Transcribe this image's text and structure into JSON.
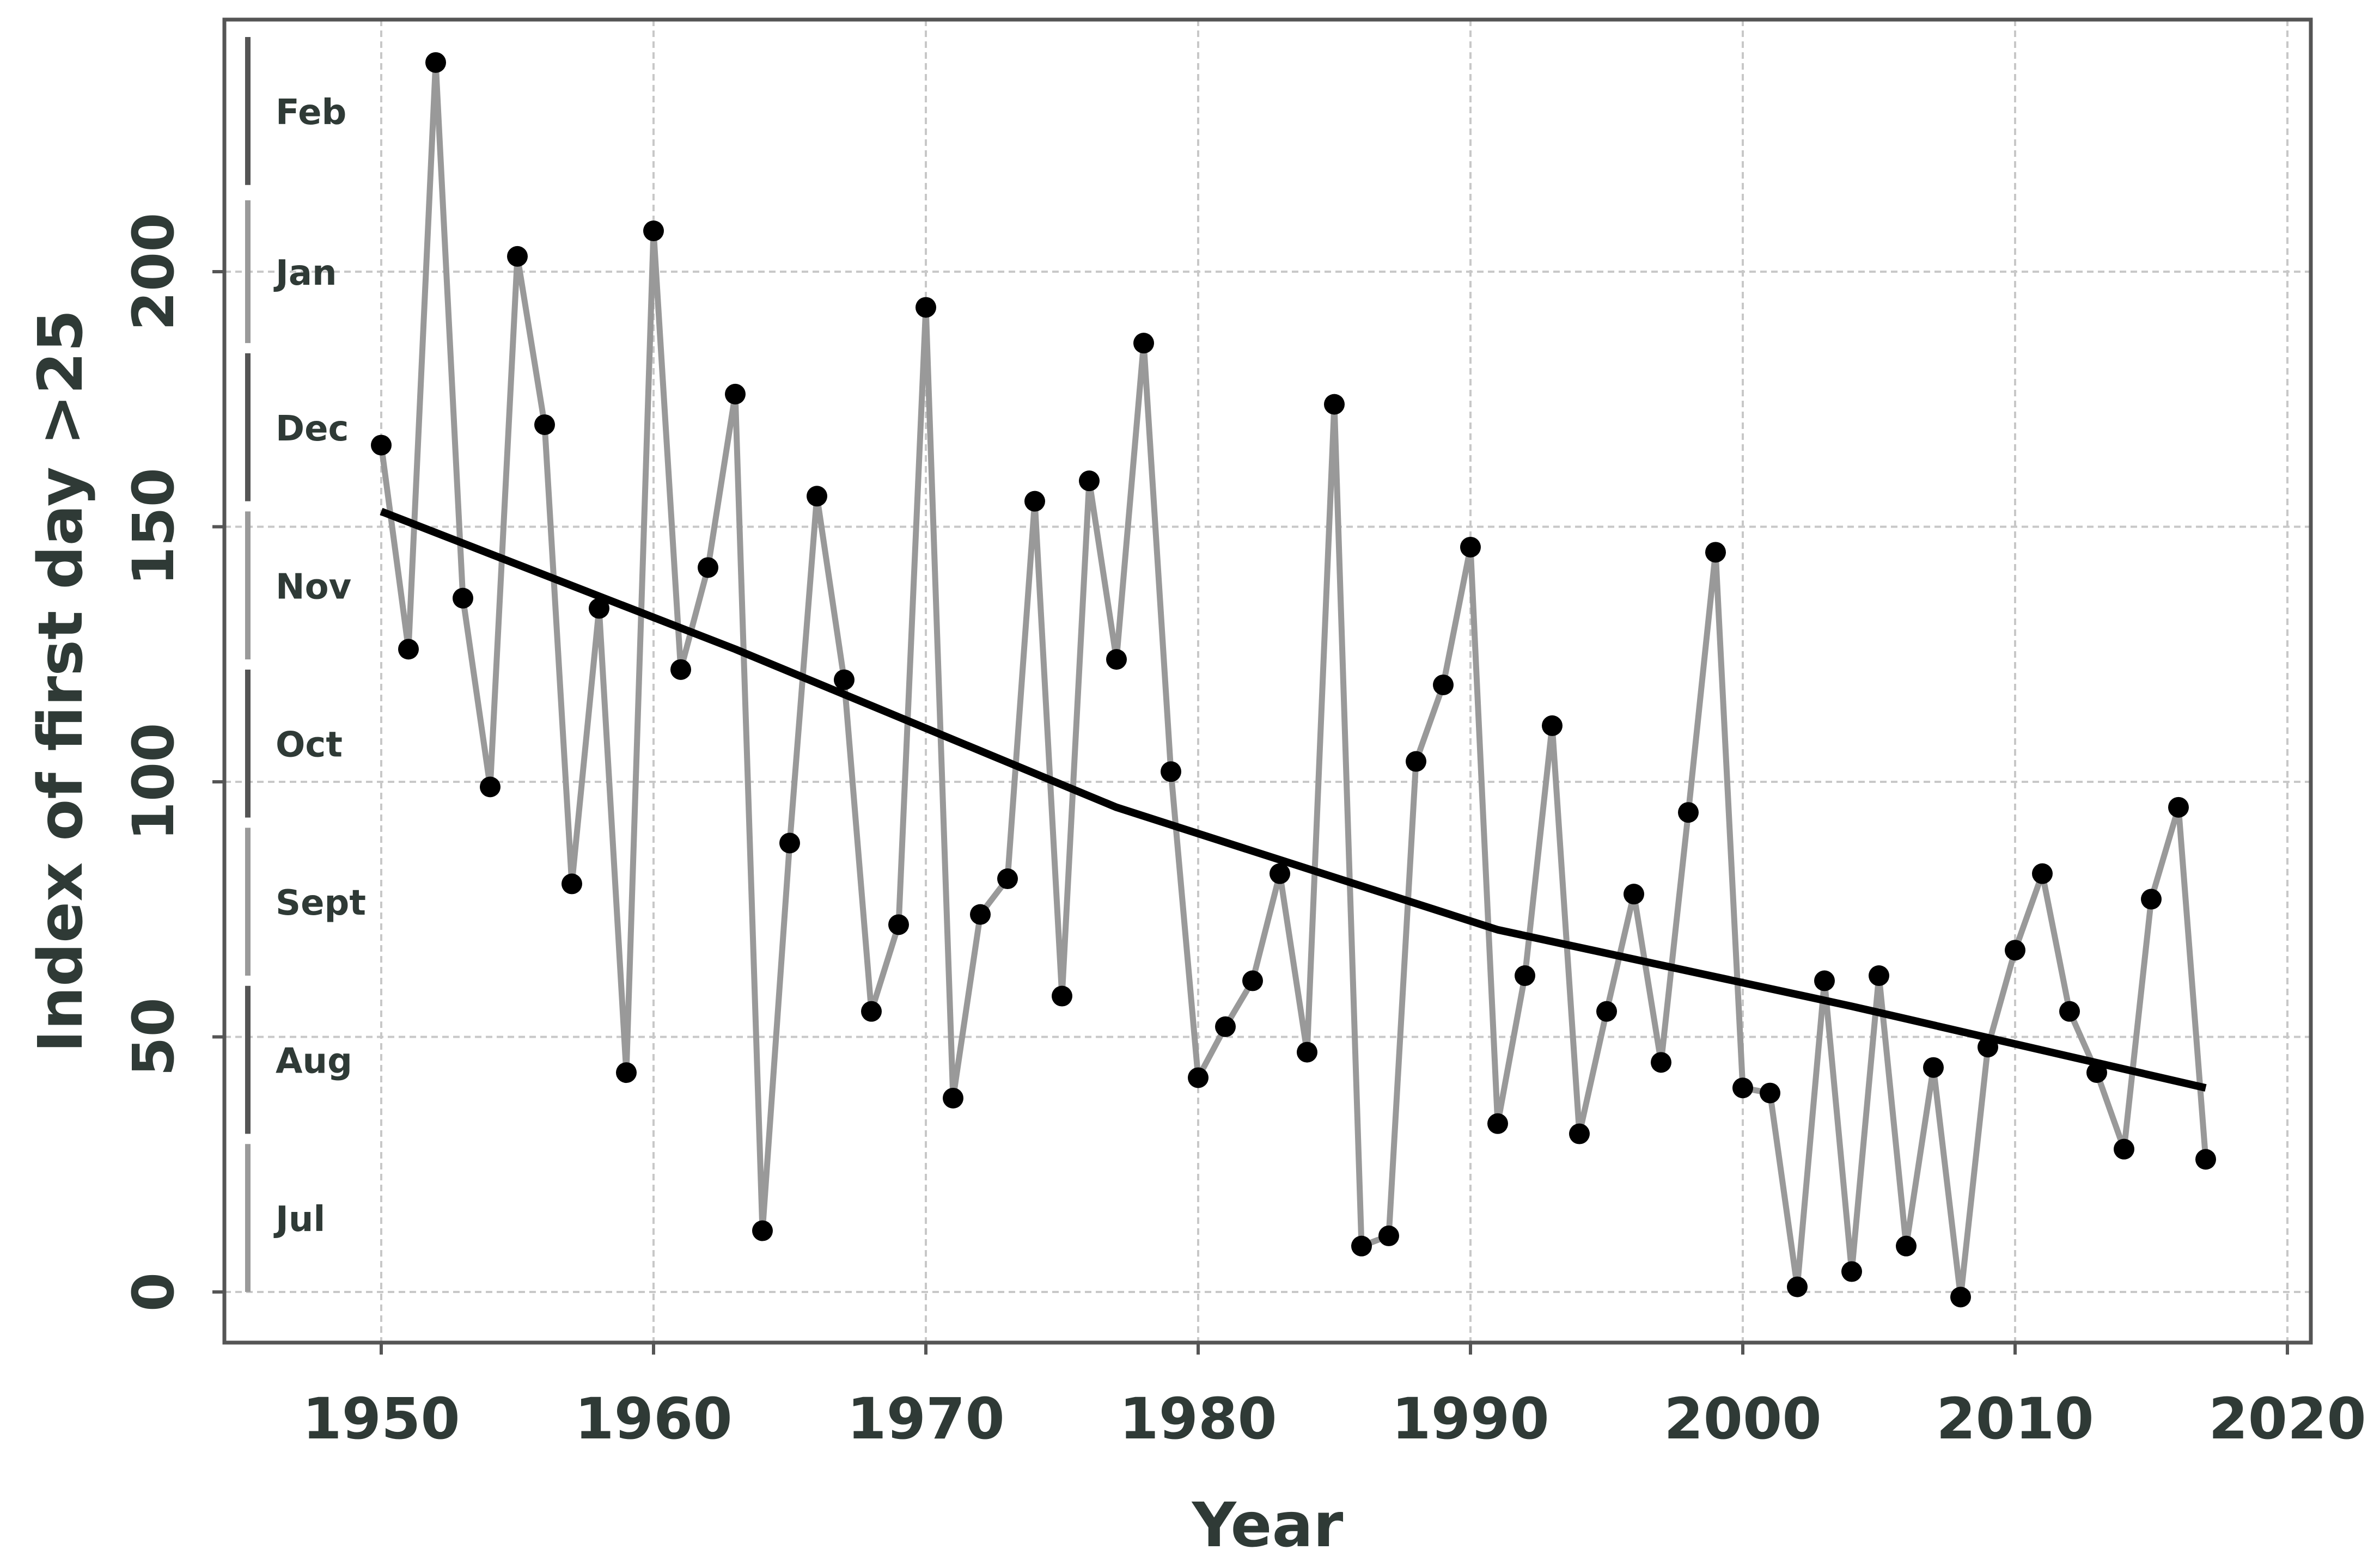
{
  "chart_data": {
    "type": "line",
    "xlabel": "Year",
    "ylabel": "Index of first day >25",
    "xlim": [
      1944,
      2021
    ],
    "ylim": [
      -10,
      250
    ],
    "xticks": [
      1950,
      1960,
      1970,
      1980,
      1990,
      2000,
      2010,
      2020
    ],
    "yticks": [
      0,
      50,
      100,
      150,
      200
    ],
    "grid": true,
    "colors": {
      "observed": "#999999",
      "points": "#000000",
      "trend": "#000000",
      "frame": "#555555",
      "grid": "#c8c8c8",
      "text": "#2f3a36"
    },
    "month_bands": [
      {
        "label": "Jul",
        "from": 0,
        "to": 29,
        "shade": "#9a9a9a"
      },
      {
        "label": "Aug",
        "from": 31,
        "to": 60,
        "shade": "#555555"
      },
      {
        "label": "Sept",
        "from": 62,
        "to": 91,
        "shade": "#9a9a9a"
      },
      {
        "label": "Oct",
        "from": 93,
        "to": 122,
        "shade": "#555555"
      },
      {
        "label": "Nov",
        "from": 124,
        "to": 153,
        "shade": "#9a9a9a"
      },
      {
        "label": "Dec",
        "from": 155,
        "to": 184,
        "shade": "#555555"
      },
      {
        "label": "Jan",
        "from": 186,
        "to": 214,
        "shade": "#9a9a9a"
      },
      {
        "label": "Feb",
        "from": 217,
        "to": 246,
        "shade": "#555555"
      }
    ],
    "series": [
      {
        "kind": "observed",
        "x": [
          1950,
          1951,
          1952,
          1953,
          1954,
          1955,
          1956,
          1957,
          1958,
          1959,
          1960,
          1961,
          1962,
          1963,
          1964,
          1965,
          1966,
          1967,
          1968,
          1969,
          1970,
          1971,
          1972,
          1973,
          1974,
          1975,
          1976,
          1977,
          1978,
          1979,
          1980,
          1981,
          1982,
          1983,
          1984,
          1985,
          1986,
          1987,
          1988,
          1989,
          1990,
          1991,
          1992,
          1993,
          1994,
          1995,
          1996,
          1997,
          1998,
          1999,
          2000,
          2001,
          2002,
          2003,
          2004,
          2005,
          2006,
          2007,
          2008,
          2009,
          2010,
          2011,
          2012,
          2013,
          2014,
          2015,
          2016,
          2017
        ],
        "values": [
          166,
          126,
          241,
          136,
          99,
          203,
          170,
          80,
          134,
          43,
          208,
          122,
          142,
          176,
          12,
          88,
          156,
          120,
          55,
          72,
          193,
          38,
          74,
          81,
          155,
          58,
          159,
          124,
          186,
          102,
          42,
          52,
          61,
          82,
          47,
          174,
          9,
          11,
          104,
          119,
          146,
          33,
          62,
          111,
          31,
          55,
          78,
          45,
          94,
          145,
          40,
          39,
          1,
          61,
          4,
          62,
          9,
          44,
          -1,
          48,
          67,
          82,
          55,
          43,
          28,
          77,
          95,
          26
        ]
      },
      {
        "kind": "trend",
        "x": [
          1950,
          1963,
          1977,
          1991,
          2004,
          2017
        ],
        "values": [
          153,
          126,
          95,
          71,
          56,
          40
        ]
      }
    ]
  }
}
